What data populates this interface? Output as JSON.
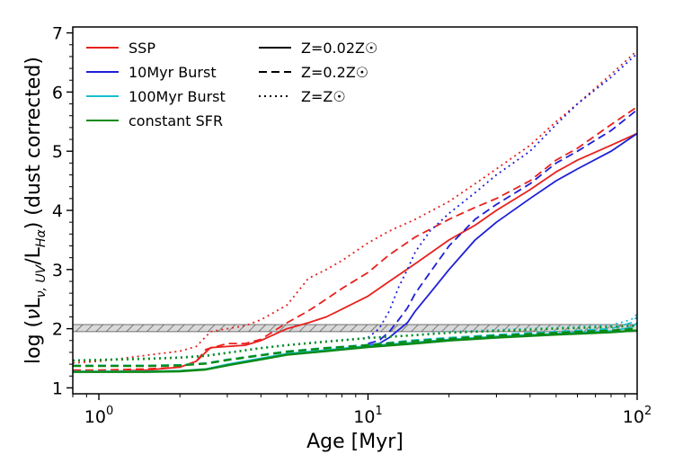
{
  "chart_data": {
    "type": "line",
    "title": "",
    "xlabel": "Age [Myr]",
    "ylabel": "log (νL_{ν,UV}/L_{Hα}) (dust corrected)",
    "xscale": "log",
    "xlim": [
      0.8,
      100
    ],
    "ylim": [
      0.9,
      7.1
    ],
    "x_ticks": [
      {
        "value": 1,
        "base": "10",
        "exp": "0"
      },
      {
        "value": 10,
        "base": "10",
        "exp": "1"
      },
      {
        "value": 100,
        "base": "10",
        "exp": "2"
      }
    ],
    "y_ticks": [
      1,
      2,
      3,
      4,
      5,
      6,
      7
    ],
    "grid": false,
    "legend_placement": "top-left",
    "shaded_band": {
      "y_min": 1.95,
      "y_max": 2.07,
      "pattern": "diagonal-hatch",
      "color": "#808080"
    },
    "models": [
      {
        "name": "SSP",
        "color": "#e8211c"
      },
      {
        "name": "10Myr Burst",
        "color": "#1f1fd6"
      },
      {
        "name": "100Myr Burst",
        "color": "#17bfcf"
      },
      {
        "name": "constant SFR",
        "color": "#0b8a16"
      }
    ],
    "metallicities": [
      {
        "name": "Z=0.02Z☉",
        "dash": "solid"
      },
      {
        "name": "Z=0.2Z☉",
        "dash": "dashed"
      },
      {
        "name": "Z=Z☉",
        "dash": "dotted"
      }
    ],
    "series": [
      {
        "model": "SSP",
        "metallicity": "Z=0.02Z☉",
        "x": [
          0.8,
          1,
          1.5,
          2,
          2.3,
          2.6,
          3,
          3.5,
          4,
          5,
          6,
          7,
          8,
          10,
          12,
          15,
          20,
          25,
          30,
          40,
          50,
          60,
          80,
          100
        ],
        "y": [
          1.27,
          1.27,
          1.3,
          1.35,
          1.45,
          1.68,
          1.7,
          1.72,
          1.8,
          2.0,
          2.1,
          2.2,
          2.33,
          2.55,
          2.8,
          3.1,
          3.5,
          3.75,
          4.0,
          4.35,
          4.65,
          4.85,
          5.1,
          5.3
        ]
      },
      {
        "model": "SSP",
        "metallicity": "Z=0.2Z☉",
        "x": [
          0.8,
          1,
          1.5,
          2,
          2.3,
          2.5,
          3,
          3.5,
          4,
          5,
          6,
          7,
          8,
          10,
          12,
          15,
          20,
          25,
          30,
          40,
          50,
          60,
          80,
          100
        ],
        "y": [
          1.3,
          1.3,
          1.32,
          1.35,
          1.45,
          1.65,
          1.75,
          1.75,
          1.82,
          2.1,
          2.3,
          2.5,
          2.68,
          2.95,
          3.25,
          3.55,
          3.85,
          4.05,
          4.2,
          4.5,
          4.85,
          5.05,
          5.45,
          5.75
        ]
      },
      {
        "model": "SSP",
        "metallicity": "Z=Z☉",
        "x": [
          0.8,
          1,
          1.5,
          2,
          2.3,
          2.6,
          3,
          3.5,
          4,
          5,
          6,
          7,
          8,
          10,
          12,
          15,
          20,
          25,
          30,
          40,
          50,
          60,
          80,
          100
        ],
        "y": [
          1.42,
          1.45,
          1.55,
          1.62,
          1.7,
          1.95,
          2.0,
          2.05,
          2.15,
          2.4,
          2.85,
          3.0,
          3.15,
          3.45,
          3.65,
          3.85,
          4.15,
          4.45,
          4.7,
          5.1,
          5.5,
          5.8,
          6.3,
          6.7
        ]
      },
      {
        "model": "10Myr Burst",
        "metallicity": "Z=0.02Z☉",
        "x": [
          10,
          11,
          12,
          13,
          14,
          15,
          17,
          20,
          25,
          30,
          40,
          50,
          60,
          80,
          100
        ],
        "y": [
          1.72,
          1.75,
          1.85,
          1.98,
          2.1,
          2.3,
          2.6,
          3.0,
          3.5,
          3.8,
          4.2,
          4.5,
          4.7,
          5.0,
          5.3
        ]
      },
      {
        "model": "10Myr Burst",
        "metallicity": "Z=0.2Z☉",
        "x": [
          10,
          11,
          12,
          13,
          14,
          15,
          17,
          20,
          25,
          30,
          40,
          50,
          60,
          80,
          100
        ],
        "y": [
          1.75,
          1.8,
          1.95,
          2.15,
          2.35,
          2.6,
          2.95,
          3.4,
          3.85,
          4.1,
          4.45,
          4.8,
          5.0,
          5.35,
          5.7
        ]
      },
      {
        "model": "10Myr Burst",
        "metallicity": "Z=Z☉",
        "x": [
          10,
          11,
          12,
          13,
          14,
          15,
          17,
          20,
          25,
          30,
          40,
          50,
          60,
          80,
          100
        ],
        "y": [
          1.85,
          2.0,
          2.3,
          2.7,
          3.0,
          3.3,
          3.65,
          3.95,
          4.3,
          4.6,
          5.0,
          5.45,
          5.8,
          6.25,
          6.65
        ]
      },
      {
        "model": "100Myr Burst",
        "metallicity": "Z=0.02Z☉",
        "x": [
          0.8,
          1,
          1.5,
          2,
          2.5,
          3,
          4,
          5,
          7,
          10,
          15,
          20,
          30,
          50,
          80,
          95,
          100
        ],
        "y": [
          1.28,
          1.28,
          1.28,
          1.29,
          1.32,
          1.4,
          1.5,
          1.58,
          1.64,
          1.71,
          1.77,
          1.82,
          1.87,
          1.92,
          1.96,
          2.02,
          2.1
        ]
      },
      {
        "model": "100Myr Burst",
        "metallicity": "Z=0.2Z☉",
        "x": [
          0.8,
          1,
          1.5,
          2,
          2.5,
          3,
          4,
          5,
          7,
          10,
          15,
          20,
          30,
          50,
          80,
          95,
          100
        ],
        "y": [
          1.38,
          1.38,
          1.38,
          1.39,
          1.42,
          1.48,
          1.56,
          1.62,
          1.68,
          1.73,
          1.81,
          1.85,
          1.9,
          1.95,
          2.0,
          2.1,
          2.2
        ]
      },
      {
        "model": "100Myr Burst",
        "metallicity": "Z=Z☉",
        "x": [
          0.8,
          1,
          1.5,
          2,
          2.5,
          3,
          4,
          5,
          7,
          10,
          15,
          20,
          30,
          50,
          80,
          95,
          100
        ],
        "y": [
          1.47,
          1.48,
          1.5,
          1.52,
          1.55,
          1.6,
          1.68,
          1.73,
          1.79,
          1.85,
          1.9,
          1.95,
          1.98,
          2.02,
          2.06,
          2.15,
          2.25
        ]
      },
      {
        "model": "constant SFR",
        "metallicity": "Z=0.02Z☉",
        "x": [
          0.8,
          1,
          1.5,
          2,
          2.5,
          3,
          4,
          5,
          7,
          10,
          15,
          20,
          30,
          50,
          80,
          100
        ],
        "y": [
          1.27,
          1.27,
          1.27,
          1.28,
          1.31,
          1.38,
          1.48,
          1.56,
          1.62,
          1.69,
          1.75,
          1.8,
          1.85,
          1.9,
          1.94,
          1.97
        ]
      },
      {
        "model": "constant SFR",
        "metallicity": "Z=0.2Z☉",
        "x": [
          0.8,
          1,
          1.5,
          2,
          2.5,
          3,
          4,
          5,
          7,
          10,
          15,
          20,
          30,
          50,
          80,
          100
        ],
        "y": [
          1.37,
          1.37,
          1.37,
          1.38,
          1.41,
          1.47,
          1.55,
          1.61,
          1.67,
          1.72,
          1.79,
          1.83,
          1.88,
          1.93,
          1.97,
          2.0
        ]
      },
      {
        "model": "constant SFR",
        "metallicity": "Z=Z☉",
        "x": [
          0.8,
          1,
          1.5,
          2,
          2.5,
          3,
          4,
          5,
          7,
          10,
          15,
          20,
          30,
          50,
          80,
          100
        ],
        "y": [
          1.46,
          1.47,
          1.49,
          1.51,
          1.54,
          1.59,
          1.67,
          1.72,
          1.78,
          1.84,
          1.89,
          1.93,
          1.96,
          2.0,
          2.03,
          2.05
        ]
      }
    ]
  }
}
